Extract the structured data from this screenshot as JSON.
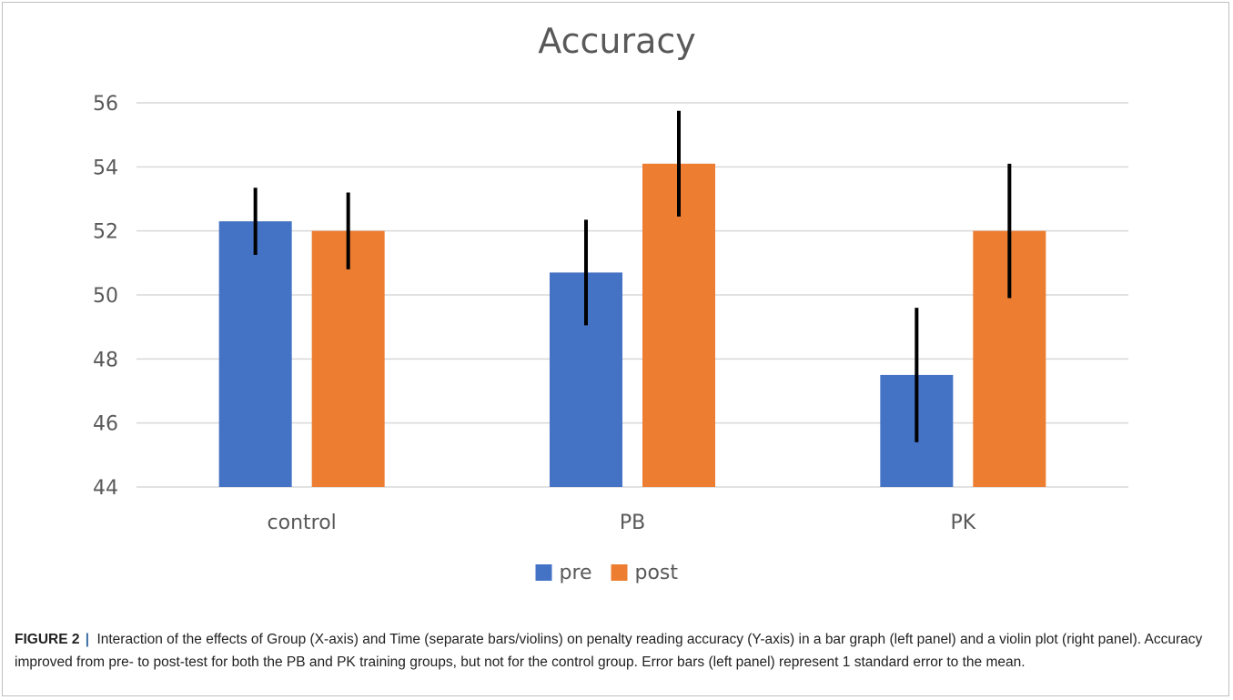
{
  "figure": {
    "caption_label": "FIGURE 2",
    "caption_separator": "|",
    "caption_text": "Interaction of the effects of Group (X-axis) and Time (separate bars/violins) on penalty reading accuracy (Y-axis) in a bar graph (left panel) and a violin plot (right panel). Accuracy improved from pre- to post-test for both the PB and PK training groups, but not for the control group. Error bars (left panel) represent 1 standard error to the mean."
  },
  "chart_data": {
    "type": "bar",
    "title": "Accuracy",
    "xlabel": "",
    "ylabel": "",
    "categories": [
      "control",
      "PB",
      "PK"
    ],
    "series": [
      {
        "name": "pre",
        "color": "#4472c4",
        "values": [
          52.3,
          50.7,
          47.5
        ],
        "error": [
          1.05,
          1.65,
          2.1
        ]
      },
      {
        "name": "post",
        "color": "#ed7d31",
        "values": [
          52.0,
          54.1,
          52.0
        ],
        "error": [
          1.2,
          1.65,
          2.1
        ]
      }
    ],
    "ylim": [
      44,
      56
    ],
    "yticks": [
      "44",
      "46",
      "48",
      "50",
      "52",
      "54",
      "56"
    ],
    "grid": true,
    "legend_position": "bottom",
    "error_bar_color": "#000000"
  }
}
